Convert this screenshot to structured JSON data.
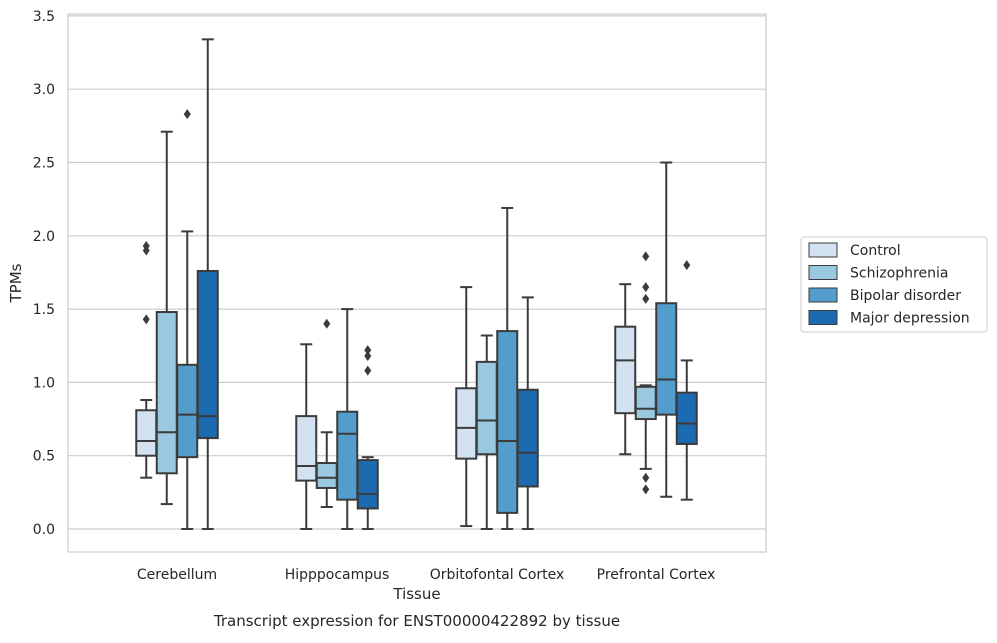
{
  "chart_data": {
    "type": "box",
    "title": "",
    "caption": "Transcript expression for ENST00000422892 by tissue",
    "xlabel": "Tissue",
    "ylabel": "TPMs",
    "ylim": [
      -0.16,
      3.52
    ],
    "yticks": [
      "0.0",
      "0.5",
      "1.0",
      "1.5",
      "2.0",
      "2.5",
      "3.0",
      "3.5"
    ],
    "grid": "horizontal",
    "legend_position": "right",
    "categories": [
      "Cerebellum",
      "Hipppocampus",
      "Orbitofontal Cortex",
      "Prefrontal Cortex"
    ],
    "series": [
      {
        "name": "Control",
        "color": "#d2e2f1",
        "boxes": [
          {
            "whislo": 0.35,
            "q1": 0.5,
            "med": 0.6,
            "q3": 0.81,
            "whishi": 0.88,
            "fliers": [
              1.43,
              1.9,
              1.93
            ]
          },
          {
            "whislo": 0.0,
            "q1": 0.33,
            "med": 0.43,
            "q3": 0.77,
            "whishi": 1.26,
            "fliers": []
          },
          {
            "whislo": 0.02,
            "q1": 0.48,
            "med": 0.69,
            "q3": 0.96,
            "whishi": 1.65,
            "fliers": []
          },
          {
            "whislo": 0.51,
            "q1": 0.79,
            "med": 1.15,
            "q3": 1.38,
            "whishi": 1.67,
            "fliers": []
          }
        ]
      },
      {
        "name": "Schizophrenia",
        "color": "#9ac8e0",
        "boxes": [
          {
            "whislo": 0.17,
            "q1": 0.38,
            "med": 0.66,
            "q3": 1.48,
            "whishi": 2.71,
            "fliers": []
          },
          {
            "whislo": 0.15,
            "q1": 0.28,
            "med": 0.35,
            "q3": 0.45,
            "whishi": 0.66,
            "fliers": [
              1.4
            ]
          },
          {
            "whislo": 0.0,
            "q1": 0.51,
            "med": 0.74,
            "q3": 1.14,
            "whishi": 1.32,
            "fliers": []
          },
          {
            "whislo": 0.41,
            "q1": 0.75,
            "med": 0.82,
            "q3": 0.97,
            "whishi": 0.98,
            "fliers": [
              0.27,
              0.35,
              1.57,
              1.65,
              1.86
            ]
          }
        ]
      },
      {
        "name": "Bipolar disorder",
        "color": "#529dcc",
        "boxes": [
          {
            "whislo": 0.0,
            "q1": 0.49,
            "med": 0.78,
            "q3": 1.12,
            "whishi": 2.03,
            "fliers": [
              2.83
            ]
          },
          {
            "whislo": 0.0,
            "q1": 0.2,
            "med": 0.65,
            "q3": 0.8,
            "whishi": 1.5,
            "fliers": []
          },
          {
            "whislo": 0.0,
            "q1": 0.11,
            "med": 0.6,
            "q3": 1.35,
            "whishi": 2.19,
            "fliers": []
          },
          {
            "whislo": 0.22,
            "q1": 0.78,
            "med": 1.02,
            "q3": 1.54,
            "whishi": 2.5,
            "fliers": []
          }
        ]
      },
      {
        "name": "Major depression",
        "color": "#1c6aaf",
        "boxes": [
          {
            "whislo": 0.0,
            "q1": 0.62,
            "med": 0.77,
            "q3": 1.76,
            "whishi": 3.34,
            "fliers": []
          },
          {
            "whislo": 0.0,
            "q1": 0.14,
            "med": 0.24,
            "q3": 0.47,
            "whishi": 0.49,
            "fliers": [
              1.08,
              1.18,
              1.22
            ]
          },
          {
            "whislo": 0.0,
            "q1": 0.29,
            "med": 0.52,
            "q3": 0.95,
            "whishi": 1.58,
            "fliers": []
          },
          {
            "whislo": 0.2,
            "q1": 0.58,
            "med": 0.72,
            "q3": 0.93,
            "whishi": 1.15,
            "fliers": [
              1.8
            ]
          }
        ]
      }
    ]
  }
}
